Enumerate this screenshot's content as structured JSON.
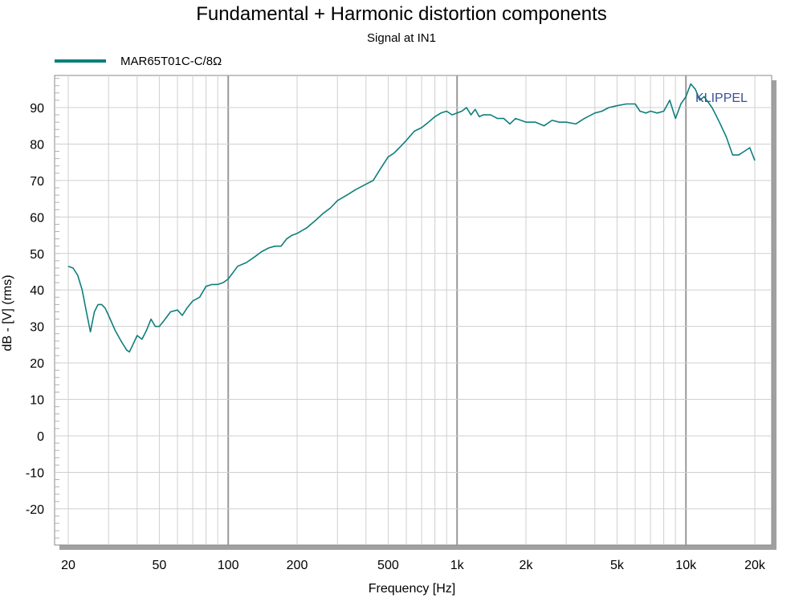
{
  "chart_data": {
    "type": "line",
    "title": "Fundamental + Harmonic distortion components",
    "subtitle": "Signal at IN1",
    "xlabel": "Frequency [Hz]",
    "ylabel": "dB - [V]  (rms)",
    "xscale": "log",
    "xlim": [
      20,
      20000
    ],
    "ylim": [
      -30,
      100
    ],
    "x_ticks": [
      {
        "value": 20,
        "label": "20"
      },
      {
        "value": 50,
        "label": "50"
      },
      {
        "value": 100,
        "label": "100"
      },
      {
        "value": 200,
        "label": "200"
      },
      {
        "value": 500,
        "label": "500"
      },
      {
        "value": 1000,
        "label": "1k"
      },
      {
        "value": 2000,
        "label": "2k"
      },
      {
        "value": 5000,
        "label": "5k"
      },
      {
        "value": 10000,
        "label": "10k"
      },
      {
        "value": 20000,
        "label": "20k"
      }
    ],
    "y_ticks": [
      {
        "value": 90,
        "label": "90"
      },
      {
        "value": 80,
        "label": "80"
      },
      {
        "value": 70,
        "label": "70"
      },
      {
        "value": 60,
        "label": "60"
      },
      {
        "value": 50,
        "label": "50"
      },
      {
        "value": 40,
        "label": "40"
      },
      {
        "value": 30,
        "label": "30"
      },
      {
        "value": 20,
        "label": "20"
      },
      {
        "value": 10,
        "label": "10"
      },
      {
        "value": 0,
        "label": "0"
      },
      {
        "value": -10,
        "label": "-10"
      },
      {
        "value": -20,
        "label": "-20"
      }
    ],
    "grid": true,
    "legend_position": "top-left",
    "watermark": "KLIPPEL",
    "series": [
      {
        "name": "MAR65T01C-C/8Ω",
        "color": "#0e7f7c",
        "x": [
          20,
          21,
          22,
          23,
          24,
          25,
          26,
          27,
          28,
          29,
          30,
          32,
          34,
          36,
          37,
          38,
          40,
          42,
          44,
          46,
          48,
          50,
          53,
          56,
          60,
          63,
          66,
          70,
          75,
          80,
          85,
          90,
          95,
          100,
          110,
          120,
          130,
          140,
          150,
          160,
          170,
          180,
          190,
          200,
          220,
          240,
          260,
          280,
          300,
          330,
          360,
          400,
          430,
          460,
          500,
          530,
          560,
          600,
          650,
          700,
          750,
          800,
          850,
          900,
          950,
          1000,
          1050,
          1100,
          1150,
          1200,
          1250,
          1300,
          1400,
          1500,
          1600,
          1700,
          1800,
          1900,
          2000,
          2200,
          2400,
          2600,
          2800,
          3000,
          3300,
          3600,
          4000,
          4300,
          4600,
          5000,
          5500,
          6000,
          6300,
          6700,
          7000,
          7500,
          8000,
          8500,
          9000,
          9500,
          10000,
          10500,
          11000,
          11500,
          12000,
          12500,
          13000,
          13500,
          14000,
          15000,
          16000,
          17000,
          18000,
          19000,
          20000
        ],
        "values": [
          46.5,
          46,
          44,
          40,
          34,
          28.5,
          34,
          36,
          36,
          35,
          33,
          29,
          26,
          23.5,
          23,
          24.5,
          27.5,
          26.5,
          29,
          32,
          30,
          30,
          32,
          34,
          34.5,
          33,
          35,
          37,
          38,
          41,
          41.5,
          41.5,
          42,
          43,
          46.5,
          47.5,
          49,
          50.5,
          51.5,
          52,
          52,
          54,
          55,
          55.5,
          57,
          59,
          61,
          62.5,
          64.5,
          66,
          67.5,
          69,
          70,
          73,
          76.5,
          77.5,
          79,
          81,
          83.5,
          84.5,
          86,
          87.5,
          88.5,
          89,
          88,
          88.5,
          89,
          90,
          88,
          89.5,
          87.5,
          88,
          88,
          87,
          87,
          85.5,
          87,
          86.5,
          86,
          86,
          85,
          86.5,
          86,
          86,
          85.5,
          87,
          88.5,
          89,
          90,
          90.5,
          91,
          91,
          89,
          88.5,
          89,
          88.5,
          89,
          92,
          87,
          91,
          93,
          96.5,
          95,
          92,
          93,
          91.5,
          90,
          88,
          86,
          82,
          77,
          77,
          78,
          79,
          75.5
        ]
      }
    ]
  }
}
